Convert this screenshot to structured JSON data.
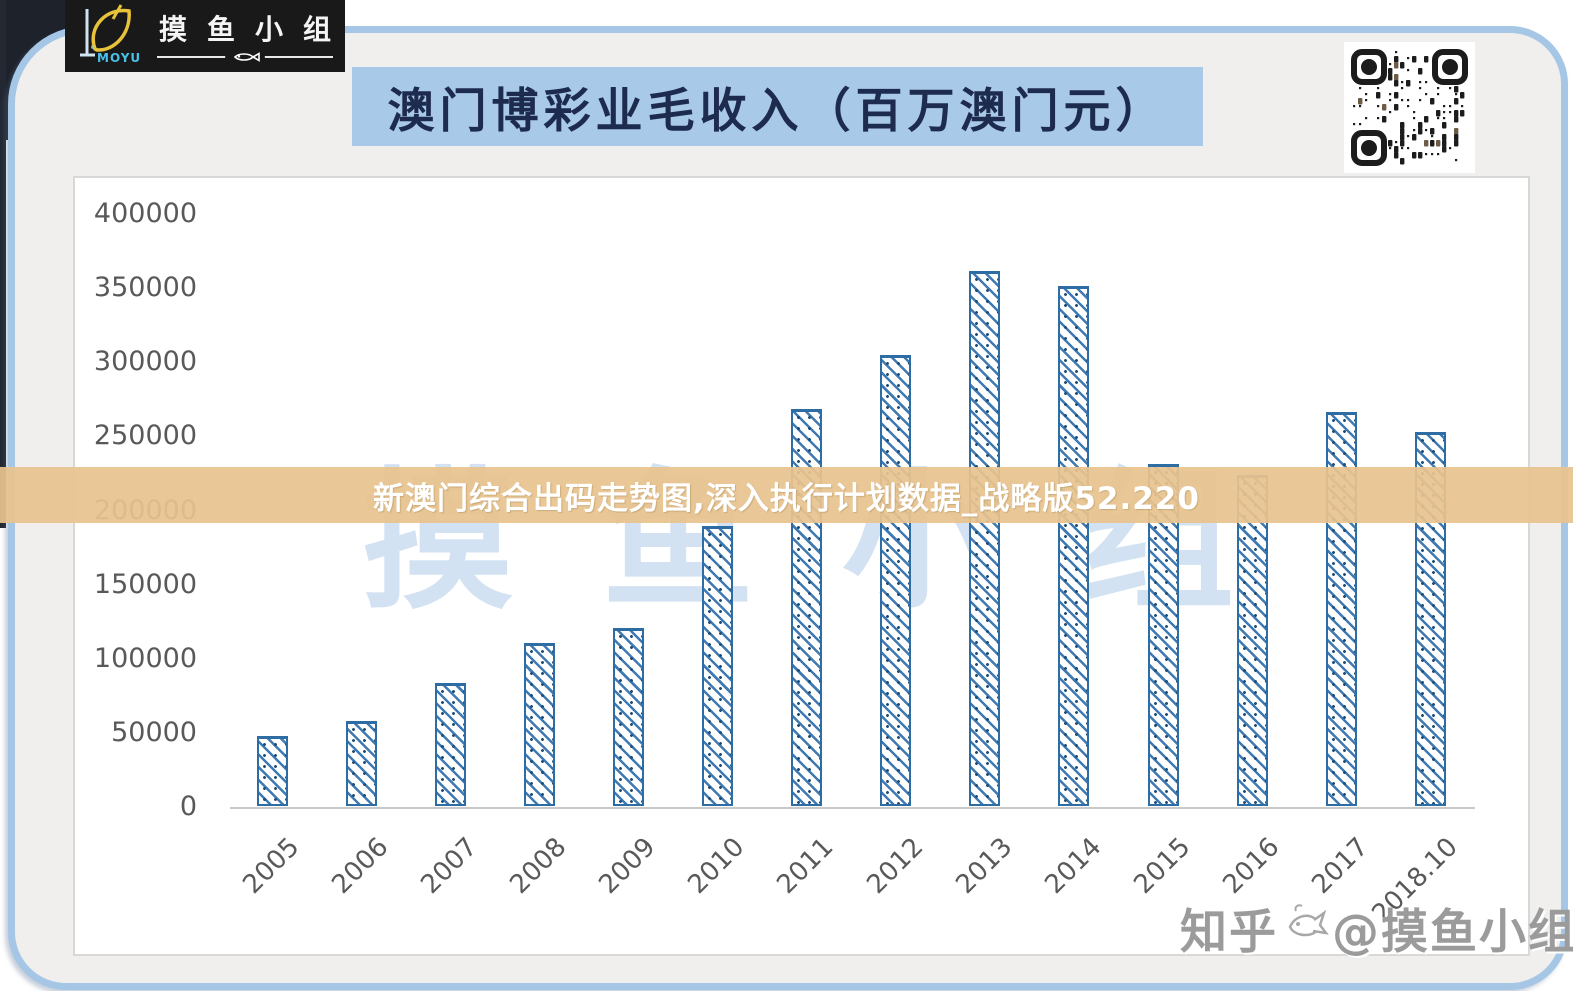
{
  "logo": {
    "brand": "MOYU",
    "group_name": "摸鱼小组"
  },
  "title": {
    "text": "澳门博彩业毛收入（百万澳门元）"
  },
  "banner": {
    "text": "新澳门综合出码走势图,深入执行计划数据_战略版52.220"
  },
  "watermarks": {
    "center": "摸鱼小组",
    "bottom_prefix": "知乎",
    "bottom_suffix": "@摸鱼小组"
  },
  "qr": {
    "label": "qr-code"
  },
  "chart_data": {
    "type": "bar",
    "title": "澳门博彩业毛收入（百万澳门元）",
    "categories": [
      "2005",
      "2006",
      "2007",
      "2008",
      "2009",
      "2010",
      "2011",
      "2012",
      "2013",
      "2014",
      "2015",
      "2016",
      "2017",
      "2018.10"
    ],
    "values": [
      47000,
      57500,
      83000,
      110000,
      120000,
      189000,
      268000,
      304000,
      361000,
      351000,
      231000,
      223000,
      266000,
      252000
    ],
    "xlabel": "",
    "ylabel": "",
    "ylim": [
      0,
      400000
    ],
    "ytick_step": 50000,
    "ytick_labels": [
      "0",
      "50000",
      "100000",
      "150000",
      "200000",
      "250000",
      "300000",
      "350000",
      "400000"
    ],
    "grid": false,
    "legend": null,
    "bar_style": {
      "fill": "#ffffff",
      "hatch": "diagonal",
      "hatch_color": "#3f7ab3",
      "border_color": "#2e6da4"
    }
  },
  "colors": {
    "title_bg": "#a9c9e9",
    "title_text": "#1d2b4f",
    "banner_bg": "#e8c38e",
    "banner_text": "#ffffff",
    "frame_border": "#a6c6e6",
    "page_bg": "#f0efed",
    "panel_bg": "#ffffff",
    "axis_text": "#595959",
    "dark_corner": "#1d222b",
    "logo_bg": "#191919",
    "logo_accent": "#49c0e8",
    "logo_fish": "#e8c23a"
  }
}
